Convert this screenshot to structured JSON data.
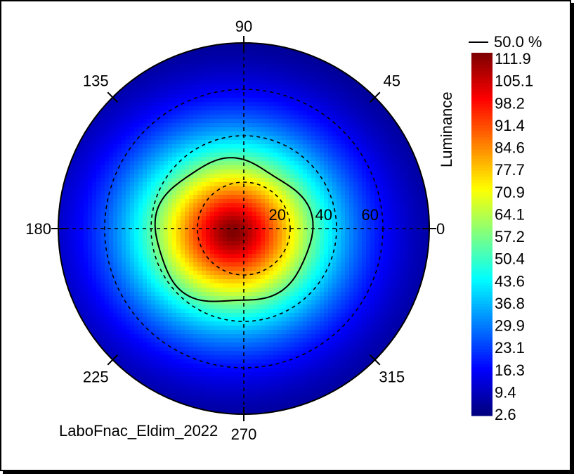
{
  "chart_data": {
    "type": "heatmap",
    "projection": "polar",
    "quantity_label": "Luminance",
    "angle_labels": [
      "0",
      "45",
      "90",
      "135",
      "180",
      "225",
      "270",
      "315"
    ],
    "angle_values": [
      0,
      45,
      90,
      135,
      180,
      225,
      270,
      315
    ],
    "radial_rings": [
      20,
      40,
      60,
      80
    ],
    "radial_labels": [
      "20",
      "40",
      "60"
    ],
    "radial_max": 80,
    "grid": true,
    "grid_style": "dashed",
    "colorbar": {
      "position": "right",
      "ticks": [
        "111.9",
        "105.1",
        "98.2",
        "91.4",
        "84.6",
        "77.7",
        "70.9",
        "64.1",
        "57.2",
        "50.4",
        "43.6",
        "36.8",
        "29.9",
        "23.1",
        "16.3",
        "9.4",
        "2.6"
      ],
      "min": 2.6,
      "max": 111.9,
      "colormap": "jet"
    },
    "contour": {
      "label": "50.0 %",
      "level": 56.0,
      "color": "#000000"
    },
    "peak": {
      "value": 111.9,
      "theta_deg": 200,
      "radius_deg": 5
    },
    "footer_text": "LaboFnac_Eldim_2022"
  }
}
